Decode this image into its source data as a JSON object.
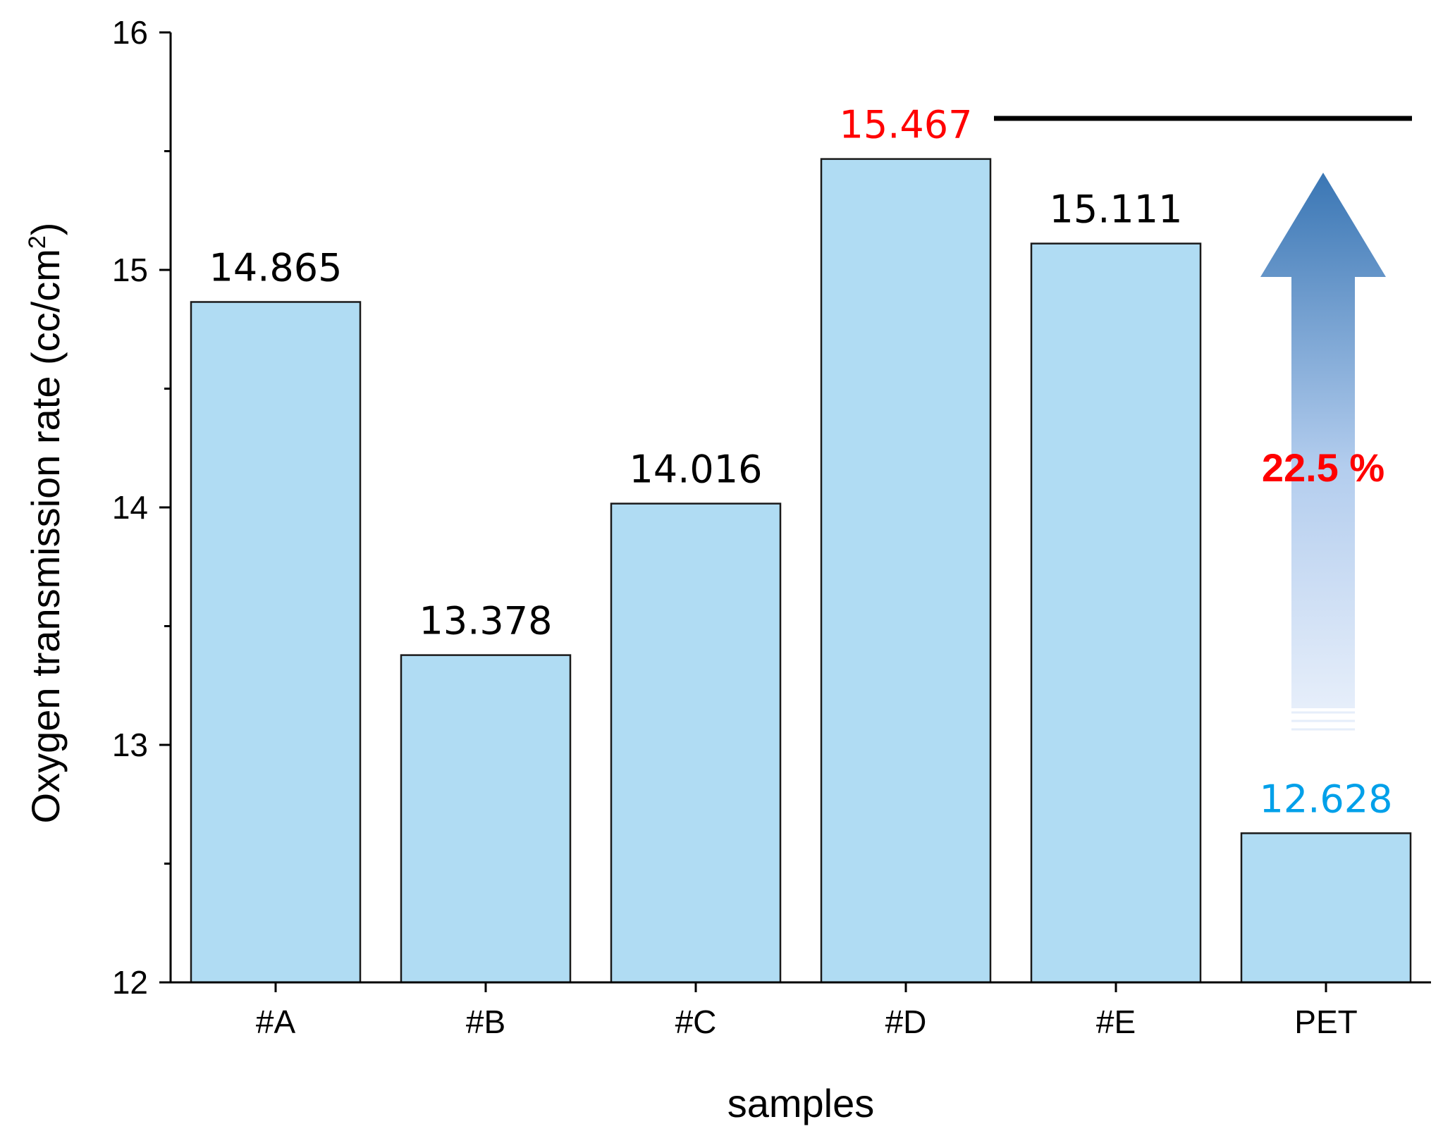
{
  "chart_data": {
    "type": "bar",
    "title": "",
    "xlabel": "samples",
    "ylabel": "Oxygen transmission rate (cc/cm",
    "ylabel_superscript": "2",
    "ylabel_close": ")",
    "categories": [
      "#A",
      "#B",
      "#C",
      "#D",
      "#E",
      "PET"
    ],
    "values": [
      14.865,
      13.378,
      14.016,
      15.467,
      15.111,
      12.628
    ],
    "value_labels": [
      "14.865",
      "13.378",
      "14.016",
      "15.467",
      "15.111",
      "12.628"
    ],
    "value_label_colors": [
      "#000000",
      "#000000",
      "#000000",
      "#ff0000",
      "#000000",
      "#00a0e9"
    ],
    "ylim": [
      12,
      16
    ],
    "yticks": [
      "12",
      "13",
      "14",
      "15",
      "16"
    ],
    "grid": false,
    "bar_color": "#b0dcf3",
    "bar_edge_color": "#1a1a1a",
    "annotation": {
      "text": "22.5 %",
      "color": "#ff0000",
      "reference_line_color": "#000000",
      "arrow_color": "#3a76b4"
    }
  }
}
